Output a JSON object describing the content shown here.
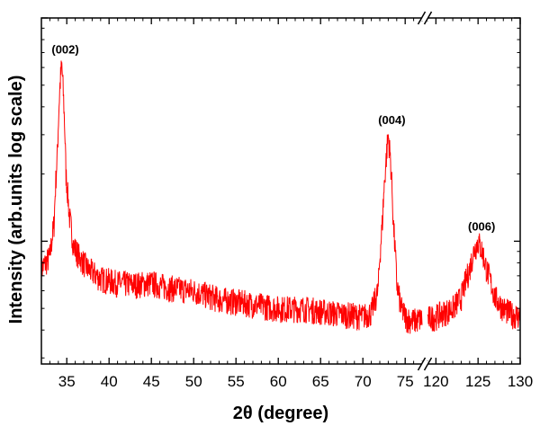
{
  "chart_data": {
    "type": "line",
    "title": "",
    "xlabel": "2θ (degree)",
    "ylabel": "Intensity (arb.units log scale)",
    "y_scale": "log",
    "y_tick_labels_shown": false,
    "broken_x_axis": true,
    "x_segments": [
      {
        "xlim": [
          32,
          77
        ],
        "ticks": [
          35,
          40,
          45,
          50,
          55,
          60,
          65,
          70,
          75
        ]
      },
      {
        "xlim": [
          119,
          130
        ],
        "ticks": [
          120,
          125,
          130
        ]
      }
    ],
    "x_tick_labels": [
      "35",
      "40",
      "45",
      "50",
      "55",
      "60",
      "65",
      "70",
      "75",
      "120",
      "125",
      "130"
    ],
    "series": [
      {
        "color": "#ff0000",
        "segments": [
          {
            "x": [
              32.0,
              33.0,
              33.5,
              33.9,
              34.2,
              34.4,
              34.6,
              34.9,
              35.3,
              35.8,
              36.5,
              37.5,
              39,
              41,
              43,
              45,
              47,
              50,
              53,
              56,
              60,
              63,
              66,
              68,
              70,
              71,
              71.8,
              72.3,
              72.7,
              73.0,
              73.3,
              73.6,
              74.0,
              74.5,
              75.2,
              76,
              77
            ],
            "y": [
              0.75,
              0.85,
              1.2,
              2.5,
              5.0,
              6.2,
              4.5,
              2.0,
              1.3,
              0.95,
              0.85,
              0.75,
              0.68,
              0.65,
              0.64,
              0.65,
              0.62,
              0.6,
              0.55,
              0.53,
              0.5,
              0.5,
              0.48,
              0.47,
              0.46,
              0.48,
              0.6,
              1.2,
              2.2,
              3.0,
              2.2,
              1.2,
              0.65,
              0.5,
              0.45,
              0.44,
              0.45
            ]
          },
          {
            "x": [
              119,
              120,
              121,
              122,
              123,
              124,
              124.5,
              125,
              125.5,
              126,
              127,
              128,
              129,
              130
            ],
            "y": [
              0.45,
              0.46,
              0.48,
              0.5,
              0.56,
              0.75,
              0.9,
              1.0,
              0.9,
              0.75,
              0.56,
              0.5,
              0.47,
              0.46
            ]
          }
        ]
      }
    ],
    "annotations": [
      {
        "text": "(002)",
        "x": 34.4,
        "y": 6.2
      },
      {
        "text": "(004)",
        "x": 73.0,
        "y": 3.0
      },
      {
        "text": "(006)",
        "x": 125.0,
        "y": 1.0
      }
    ]
  }
}
